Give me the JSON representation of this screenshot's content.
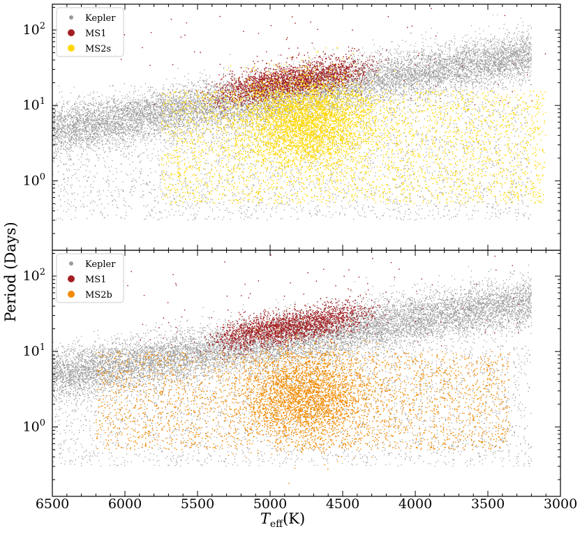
{
  "chart_data": {
    "type": "scatter",
    "xlabel_main": "T",
    "xlabel_sub": "eff",
    "xlabel_unit": "(K)",
    "ylabel": "Period (Days)",
    "x_reversed": true,
    "y_log": true,
    "xlim": [
      6500,
      3000
    ],
    "ylim": [
      0.12,
      220
    ],
    "x_ticks": [
      6500,
      6000,
      5500,
      5000,
      4500,
      4000,
      3500,
      3000
    ],
    "y_ticks": [
      {
        "value": 1,
        "label_base": "10",
        "label_exp": "0"
      },
      {
        "value": 10,
        "label_base": "10",
        "label_exp": "1"
      },
      {
        "value": 100,
        "label_base": "10",
        "label_exp": "2"
      }
    ],
    "panels": [
      {
        "legend_position": "top-left",
        "series": [
          {
            "name": "Kepler",
            "color": "#999999",
            "n_points": 14000,
            "shape": "gray band rising from ~5 d at 6400 K to ~45 d at 3300 K"
          },
          {
            "name": "MS1",
            "color": "#a31f22",
            "n_points": 2200,
            "shape": "concentrated band 15-30 d between 5200 K and 4500 K"
          },
          {
            "name": "MS2s",
            "color": "#ffd800",
            "n_points": 6500,
            "shape": "broad cloud 0.5-15 d between 5700 K and 3100 K, densest 5000-4500 K at 4-10 d"
          }
        ]
      },
      {
        "legend_position": "top-left",
        "series": [
          {
            "name": "Kepler",
            "color": "#999999",
            "n_points": 14000,
            "shape": "gray band rising from ~5 d at 6400 K to ~45 d at 3300 K"
          },
          {
            "name": "MS1",
            "color": "#a31f22",
            "n_points": 2200,
            "shape": "concentrated band 15-30 d between 5200 K and 4500 K"
          },
          {
            "name": "MS2b",
            "color": "#f28a00",
            "n_points": 5500,
            "shape": "cloud 0.5-10 d between 6200 K and 3400 K, densest 5000-4500 K at 1-6 d"
          }
        ]
      }
    ]
  }
}
